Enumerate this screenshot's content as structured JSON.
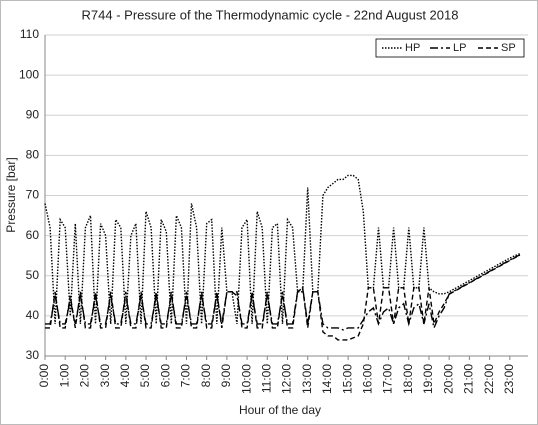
{
  "chart_data": {
    "type": "line",
    "title": "R744 - Pressure of the Thermodynamic cycle - 22nd August 2018",
    "x_label": "Hour of the day",
    "y_label": "Pressure [bar]",
    "x": [
      0,
      0.25,
      0.5,
      0.75,
      1,
      1.25,
      1.5,
      1.75,
      2,
      2.25,
      2.5,
      2.75,
      3,
      3.25,
      3.5,
      3.75,
      4,
      4.25,
      4.5,
      4.75,
      5,
      5.25,
      5.5,
      5.75,
      6,
      6.25,
      6.5,
      6.75,
      7,
      7.25,
      7.5,
      7.75,
      8,
      8.25,
      8.5,
      8.75,
      9,
      9.25,
      9.5,
      9.75,
      10,
      10.25,
      10.5,
      10.75,
      11,
      11.25,
      11.5,
      11.75,
      12,
      12.25,
      12.5,
      12.75,
      13,
      13.25,
      13.5,
      13.75,
      14,
      14.25,
      14.5,
      14.75,
      15,
      15.25,
      15.5,
      15.75,
      16,
      16.25,
      16.5,
      16.75,
      17,
      17.25,
      17.5,
      17.75,
      18,
      18.25,
      18.5,
      18.75,
      19,
      19.25,
      19.5,
      19.75,
      20,
      20.25,
      20.5,
      20.75,
      21,
      21.25,
      21.5,
      21.75,
      22,
      22.25,
      22.5,
      22.75,
      23,
      23.25,
      23.5
    ],
    "series": [
      {
        "name": "HP",
        "color": "#000000",
        "dash": "1.5 1.5",
        "values": [
          68,
          62,
          38,
          64,
          62,
          40,
          63,
          38,
          62,
          65,
          38,
          63,
          60,
          38,
          64,
          62,
          38,
          60,
          63,
          38,
          66,
          62,
          38,
          64,
          61,
          38,
          65,
          62,
          38,
          68,
          62,
          38,
          63,
          64,
          38,
          62,
          46,
          46,
          38,
          62,
          64,
          38,
          66,
          62,
          38,
          62,
          63,
          38,
          64,
          62,
          46,
          46,
          72,
          46,
          46,
          70,
          72,
          73,
          74,
          74,
          75,
          75,
          74,
          66,
          47,
          47,
          62,
          47,
          47,
          62,
          47,
          47,
          62,
          47,
          47,
          62,
          47,
          46,
          45.5,
          45.5,
          46,
          46.7,
          47.4,
          48.1,
          48.8,
          49.5,
          50.2,
          50.9,
          51.6,
          52.3,
          53,
          53.7,
          54.4,
          55,
          55.5
        ]
      },
      {
        "name": "LP",
        "color": "#000000",
        "dash": "8 3 2 3",
        "values": [
          38,
          38,
          45,
          38,
          38,
          44,
          38,
          45,
          38,
          38,
          45,
          38,
          38,
          45,
          38,
          38,
          45,
          38,
          38,
          45,
          38,
          38,
          45,
          38,
          38,
          45,
          38,
          38,
          45,
          38,
          38,
          45,
          38,
          38,
          45,
          38,
          46,
          46,
          45,
          38,
          38,
          45,
          38,
          38,
          45,
          38,
          38,
          45,
          38,
          38,
          46,
          47,
          38,
          46,
          46,
          38,
          37,
          37,
          37,
          36.5,
          37,
          37,
          37,
          39,
          41,
          42,
          38,
          41,
          42,
          38,
          42,
          43,
          38,
          42,
          43,
          38,
          43,
          37,
          40,
          42,
          45.5,
          46.2,
          46.9,
          47.6,
          48.3,
          49,
          49.7,
          50.4,
          51.1,
          51.8,
          52.5,
          53.2,
          53.9,
          54.6,
          55.2
        ]
      },
      {
        "name": "SP",
        "color": "#000000",
        "dash": "5 3",
        "values": [
          37,
          37,
          46,
          37,
          37,
          45,
          37,
          46,
          37,
          37,
          46,
          37,
          37,
          46,
          37,
          37,
          46,
          37,
          37,
          46,
          37,
          37,
          46,
          37,
          37,
          46,
          37,
          37,
          46,
          37,
          37,
          46,
          37,
          37,
          46,
          37,
          46,
          46,
          46,
          37,
          37,
          46,
          37,
          37,
          46,
          37,
          37,
          46,
          37,
          37,
          46,
          47,
          37,
          46,
          46,
          36,
          35,
          35,
          34,
          34,
          34,
          34.5,
          35,
          38,
          47,
          47,
          38,
          47,
          47,
          38,
          47,
          47,
          38,
          47,
          47,
          38,
          47,
          38,
          41,
          43,
          45.4,
          46.1,
          46.8,
          47.5,
          48.2,
          48.9,
          49.6,
          50.3,
          51,
          51.7,
          52.4,
          53.1,
          53.8,
          54.5,
          55.1
        ]
      }
    ],
    "xlim": [
      0,
      23.9
    ],
    "xticks": [
      {
        "value": 0,
        "label": "0:00"
      },
      {
        "value": 1,
        "label": "1:00"
      },
      {
        "value": 2,
        "label": "2:00"
      },
      {
        "value": 3,
        "label": "3:00"
      },
      {
        "value": 4,
        "label": "4:00"
      },
      {
        "value": 5,
        "label": "5:00"
      },
      {
        "value": 6,
        "label": "6:00"
      },
      {
        "value": 7,
        "label": "7:00"
      },
      {
        "value": 8,
        "label": "8:00"
      },
      {
        "value": 9,
        "label": "9:00"
      },
      {
        "value": 10,
        "label": "10:00"
      },
      {
        "value": 11,
        "label": "11:00"
      },
      {
        "value": 12,
        "label": "12:00"
      },
      {
        "value": 13,
        "label": "13:00"
      },
      {
        "value": 14,
        "label": "14:00"
      },
      {
        "value": 15,
        "label": "15:00"
      },
      {
        "value": 16,
        "label": "16:00"
      },
      {
        "value": 17,
        "label": "17:00"
      },
      {
        "value": 18,
        "label": "18:00"
      },
      {
        "value": 19,
        "label": "19:00"
      },
      {
        "value": 20,
        "label": "20:00"
      },
      {
        "value": 21,
        "label": "21:00"
      },
      {
        "value": 22,
        "label": "22:00"
      },
      {
        "value": 23,
        "label": "23:00"
      }
    ],
    "ylim": [
      30,
      110
    ],
    "yticks": [
      30,
      40,
      50,
      60,
      70,
      80,
      90,
      100,
      110
    ],
    "grid": true,
    "legend": "top-right"
  }
}
